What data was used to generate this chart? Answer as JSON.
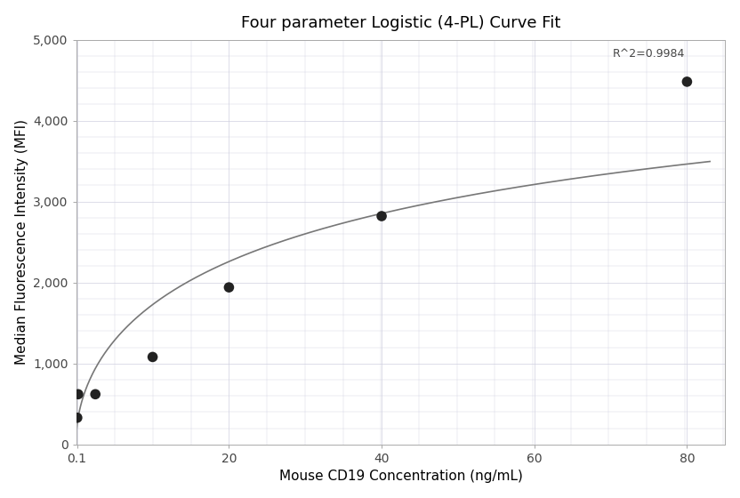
{
  "title": "Four parameter Logistic (4-PL) Curve Fit",
  "xlabel": "Mouse CD19 Concentration (ng/mL)",
  "ylabel": "Median Fluorescence Intensity (MFI)",
  "scatter_x": [
    0.125,
    0.25,
    2.5,
    10,
    20,
    40,
    80
  ],
  "scatter_y": [
    330,
    620,
    620,
    1080,
    1940,
    2820,
    4480
  ],
  "r_squared": "R^2=0.9984",
  "ylim": [
    0,
    5000
  ],
  "yticks": [
    0,
    1000,
    2000,
    3000,
    4000,
    5000
  ],
  "ytick_labels": [
    "0",
    "1,000",
    "2,000",
    "3,000",
    "4,000",
    "5,000"
  ],
  "xlim": [
    0.0,
    85
  ],
  "xtick_positions": [
    0.1,
    20,
    40,
    60,
    80
  ],
  "xtick_labels": [
    "0.1",
    "20",
    "40",
    "60",
    "80"
  ],
  "dot_color": "#222222",
  "dot_size": 70,
  "line_color": "#777777",
  "grid_color": "#d0d0e0",
  "bg_color": "#ffffff",
  "title_fontsize": 13,
  "label_fontsize": 11,
  "tick_fontsize": 10,
  "annotation_fontsize": 9
}
